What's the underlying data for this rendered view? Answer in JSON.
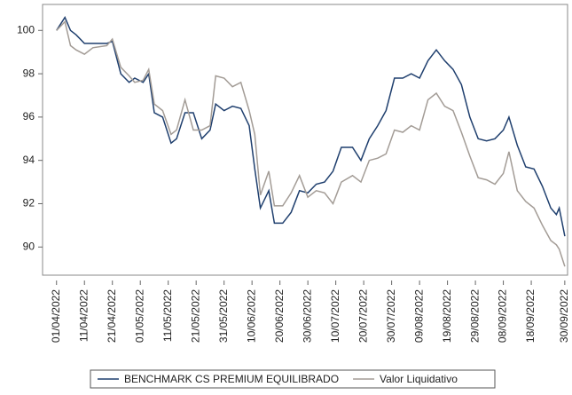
{
  "chart_data": {
    "type": "line",
    "x": [
      "01/04/2022",
      "04/04/2022",
      "06/04/2022",
      "08/04/2022",
      "11/04/2022",
      "14/04/2022",
      "19/04/2022",
      "21/04/2022",
      "24/04/2022",
      "27/04/2022",
      "29/04/2022",
      "02/05/2022",
      "04/05/2022",
      "06/05/2022",
      "09/05/2022",
      "12/05/2022",
      "14/05/2022",
      "17/05/2022",
      "20/05/2022",
      "23/05/2022",
      "26/05/2022",
      "28/05/2022",
      "31/05/2022",
      "03/06/2022",
      "06/06/2022",
      "09/06/2022",
      "11/06/2022",
      "13/06/2022",
      "16/06/2022",
      "18/06/2022",
      "21/06/2022",
      "24/06/2022",
      "27/06/2022",
      "30/06/2022",
      "03/07/2022",
      "06/07/2022",
      "09/07/2022",
      "12/07/2022",
      "16/07/2022",
      "19/07/2022",
      "22/07/2022",
      "25/07/2022",
      "28/07/2022",
      "31/07/2022",
      "03/08/2022",
      "06/08/2022",
      "09/08/2022",
      "12/08/2022",
      "15/08/2022",
      "18/08/2022",
      "21/08/2022",
      "24/08/2022",
      "27/08/2022",
      "30/08/2022",
      "02/09/2022",
      "05/09/2022",
      "08/09/2022",
      "10/09/2022",
      "13/09/2022",
      "16/09/2022",
      "19/09/2022",
      "22/09/2022",
      "25/09/2022",
      "27/09/2022",
      "28/09/2022",
      "30/09/2022"
    ],
    "series": [
      {
        "name": "BENCHMARK CS PREMIUM EQUILIBRADO",
        "color": "#1f3f6e",
        "values": [
          100.0,
          100.6,
          100.0,
          99.8,
          99.4,
          99.4,
          99.4,
          99.5,
          98.0,
          97.6,
          97.8,
          97.6,
          98.0,
          96.2,
          96.0,
          94.8,
          95.0,
          96.2,
          96.2,
          95.0,
          95.4,
          96.6,
          96.3,
          96.5,
          96.4,
          95.6,
          93.6,
          91.8,
          92.6,
          91.1,
          91.1,
          91.6,
          92.6,
          92.5,
          92.9,
          93.0,
          93.5,
          94.6,
          94.6,
          94.0,
          95.0,
          95.6,
          96.3,
          97.8,
          97.8,
          98.0,
          97.8,
          98.6,
          99.1,
          98.6,
          98.2,
          97.5,
          96.0,
          95.0,
          94.9,
          95.0,
          95.4,
          96.0,
          94.7,
          93.7,
          93.6,
          92.8,
          91.8,
          91.5,
          91.8,
          90.5
        ]
      },
      {
        "name": "Valor Liquidativo",
        "color": "#a39c96",
        "values": [
          100.0,
          100.4,
          99.3,
          99.1,
          98.9,
          99.2,
          99.3,
          99.6,
          98.3,
          97.9,
          97.6,
          97.7,
          98.2,
          96.6,
          96.3,
          95.2,
          95.4,
          96.8,
          95.4,
          95.4,
          95.6,
          97.9,
          97.8,
          97.4,
          97.6,
          96.3,
          95.2,
          92.4,
          93.5,
          91.9,
          91.9,
          92.5,
          93.3,
          92.3,
          92.6,
          92.5,
          92.0,
          93.0,
          93.3,
          93.0,
          94.0,
          94.1,
          94.3,
          95.4,
          95.3,
          95.6,
          95.4,
          96.8,
          97.1,
          96.5,
          96.3,
          95.3,
          94.2,
          93.2,
          93.1,
          92.9,
          93.4,
          94.4,
          92.6,
          92.1,
          91.8,
          91.0,
          90.3,
          90.1,
          89.9,
          89.1
        ]
      }
    ],
    "xlim": [
      "27/03/2022",
      "01/10/2022"
    ],
    "xticks": [
      "01/04/2022",
      "11/04/2022",
      "21/04/2022",
      "01/05/2022",
      "11/05/2022",
      "21/05/2022",
      "31/05/2022",
      "10/06/2022",
      "20/06/2022",
      "30/06/2022",
      "10/07/2022",
      "20/07/2022",
      "30/07/2022",
      "09/08/2022",
      "19/08/2022",
      "29/08/2022",
      "08/09/2022",
      "18/09/2022",
      "30/09/2022"
    ],
    "ylim": [
      88.7,
      101.2
    ],
    "yticks": [
      90,
      92,
      94,
      96,
      98,
      100
    ]
  }
}
